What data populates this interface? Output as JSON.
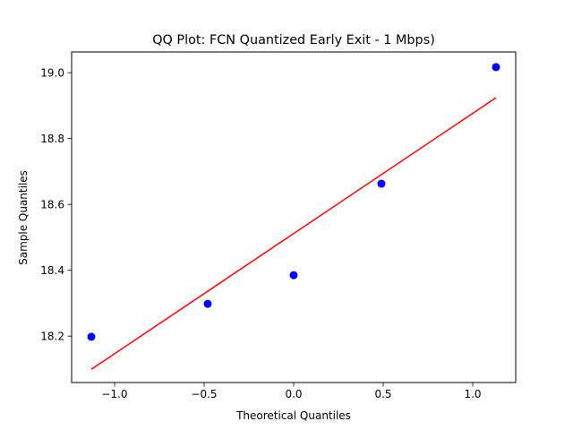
{
  "chart_data": {
    "type": "scatter",
    "title": "QQ Plot: FCN Quantized Early Exit - 1 Mbps)",
    "xlabel": "Theoretical Quantiles",
    "ylabel": "Sample Quantiles",
    "xlim": [
      -1.24,
      1.24
    ],
    "ylim": [
      18.059,
      19.063
    ],
    "xticks": [
      -1.0,
      -0.5,
      0.0,
      0.5,
      1.0
    ],
    "xtick_labels": [
      "−1.0",
      "−0.5",
      "0.0",
      "0.5",
      "1.0"
    ],
    "yticks": [
      18.2,
      18.4,
      18.6,
      18.8,
      19.0
    ],
    "ytick_labels": [
      "18.2",
      "18.4",
      "18.6",
      "18.8",
      "19.0"
    ],
    "grid": false,
    "points": {
      "x": [
        -1.13,
        -0.48,
        0.0,
        0.49,
        1.13
      ],
      "y": [
        18.198,
        18.298,
        18.385,
        18.663,
        19.017
      ],
      "color": "#0000ff"
    },
    "fit_line": {
      "x": [
        -1.13,
        1.13
      ],
      "y": [
        18.099,
        18.924
      ],
      "color": "#ff0000"
    }
  }
}
